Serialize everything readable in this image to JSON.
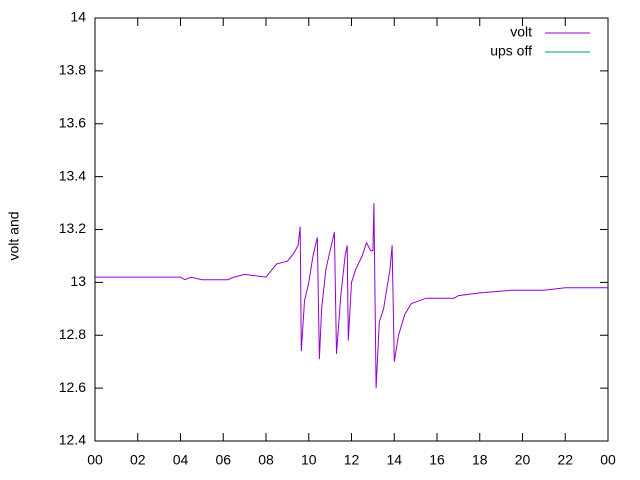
{
  "chart_data": {
    "type": "line",
    "y_label": "volt and",
    "x": [
      0,
      4.0,
      4.2,
      4.5,
      5.0,
      6.2,
      6.5,
      7.0,
      8.0,
      8.3,
      8.5,
      9.0,
      9.3,
      9.5,
      9.6,
      9.65,
      9.8,
      10.0,
      10.2,
      10.4,
      10.5,
      10.6,
      10.8,
      11.0,
      11.2,
      11.3,
      11.5,
      11.7,
      11.8,
      11.85,
      12.0,
      12.2,
      12.5,
      12.7,
      12.9,
      13.0,
      13.05,
      13.15,
      13.3,
      13.5,
      13.8,
      13.9,
      14.0,
      14.2,
      14.5,
      14.8,
      15.5,
      16.8,
      17.0,
      18.0,
      19.5,
      21.0,
      22.0,
      22.5,
      24
    ],
    "series": [
      {
        "name": "volt",
        "color": "#9400d3",
        "values": [
          13.02,
          13.02,
          13.01,
          13.02,
          13.01,
          13.01,
          13.02,
          13.03,
          13.02,
          13.05,
          13.07,
          13.08,
          13.11,
          13.14,
          13.21,
          12.74,
          12.93,
          13.0,
          13.1,
          13.17,
          12.71,
          12.9,
          13.05,
          13.12,
          13.19,
          12.73,
          12.95,
          13.1,
          13.14,
          12.78,
          13.0,
          13.05,
          13.1,
          13.15,
          13.12,
          13.12,
          13.3,
          12.6,
          12.85,
          12.9,
          13.05,
          13.14,
          12.7,
          12.8,
          12.88,
          12.92,
          12.94,
          12.94,
          12.95,
          12.96,
          12.97,
          12.97,
          12.98,
          12.98,
          12.98
        ]
      },
      {
        "name": "ups off",
        "color": "#009e73",
        "values": [
          null,
          null,
          null,
          null,
          null,
          null,
          null,
          null,
          null,
          null,
          null,
          null,
          null,
          null,
          null,
          null,
          null,
          null,
          null,
          null,
          null,
          null,
          null,
          null,
          null,
          null,
          null,
          null,
          null,
          null,
          null,
          null,
          null,
          null,
          null,
          null,
          null,
          null,
          null,
          null,
          null,
          null,
          null,
          null,
          null,
          null,
          null,
          null,
          null,
          null,
          null,
          null,
          null,
          null,
          null
        ]
      }
    ],
    "xlim": [
      0,
      24
    ],
    "xticks": [
      {
        "value": 0,
        "label": "00"
      },
      {
        "value": 2,
        "label": "02"
      },
      {
        "value": 4,
        "label": "04"
      },
      {
        "value": 6,
        "label": "06"
      },
      {
        "value": 8,
        "label": "08"
      },
      10,
      12,
      14,
      16,
      18,
      20,
      22,
      {
        "value": 24,
        "label": "00"
      }
    ],
    "ylim": [
      12.4,
      14
    ],
    "yticks": [
      12.4,
      12.6,
      12.8,
      13,
      13.2,
      13.4,
      13.6,
      13.8,
      14
    ],
    "legend": "top-right"
  }
}
